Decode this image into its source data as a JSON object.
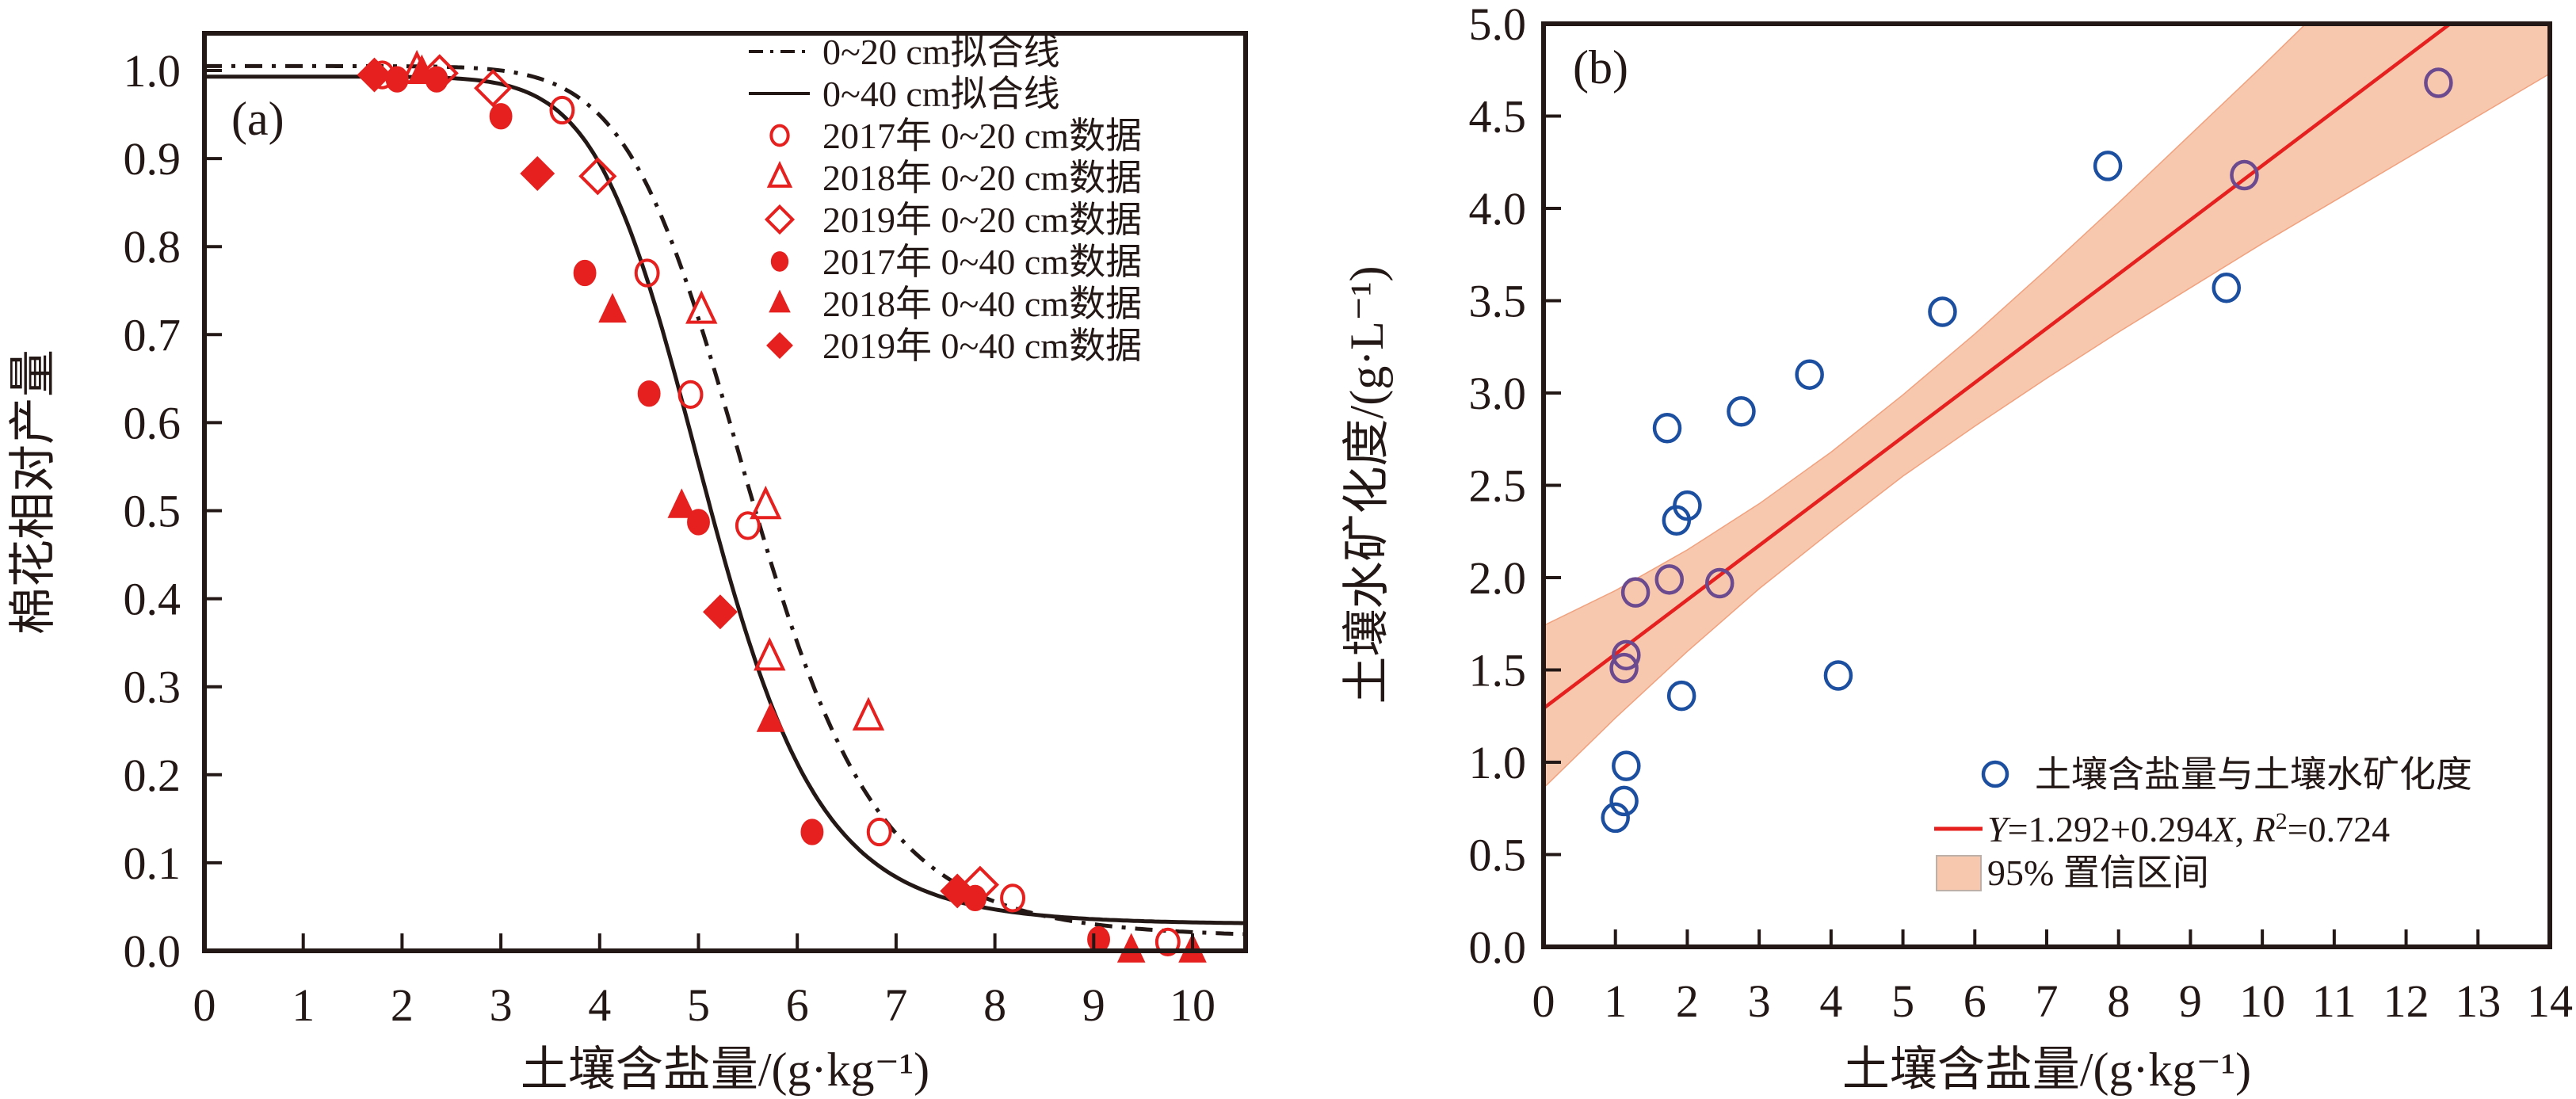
{
  "chart_data": [
    {
      "id": "a",
      "type": "scatter",
      "panel_label": "(a)",
      "title": "",
      "xlabel": "土壤含盐量/(g·kg⁻¹)",
      "ylabel": "棉花相对产量",
      "xlim": [
        0,
        10.5
      ],
      "ylim": [
        0,
        1.04
      ],
      "xticks": [
        "0",
        "1",
        "2",
        "3",
        "4",
        "5",
        "6",
        "7",
        "8",
        "9",
        "10"
      ],
      "yticks": [
        "0.0",
        "0.1",
        "0.2",
        "0.3",
        "0.4",
        "0.5",
        "0.6",
        "0.7",
        "0.8",
        "0.9",
        "1.0"
      ],
      "grid": false,
      "legend_position": "top-right",
      "colors": {
        "marker": "#e5201e",
        "line": "#231815"
      },
      "fit_lines": [
        {
          "name": "0~20 cm拟合线",
          "style": "dash-dot",
          "upper": 1.005,
          "lower": 0.015,
          "x50": 5.55,
          "slope": 1.55
        },
        {
          "name": "0~40 cm拟合线",
          "style": "solid",
          "upper": 0.993,
          "lower": 0.03,
          "x50": 5.1,
          "slope": 1.75
        }
      ],
      "series": [
        {
          "name": "2017年 0~20 cm数据",
          "marker": "circle",
          "filled": false,
          "x": [
            1.8,
            3.62,
            4.48,
            4.92,
            5.5,
            6.83,
            8.18,
            9.75
          ],
          "y": [
            0.995,
            0.955,
            0.77,
            0.632,
            0.483,
            0.135,
            0.06,
            0.01
          ]
        },
        {
          "name": "2018年 0~20 cm数据",
          "marker": "triangle",
          "filled": false,
          "x": [
            2.15,
            5.03,
            5.68,
            5.72,
            6.72
          ],
          "y": [
            1.0,
            0.727,
            0.505,
            0.333,
            0.265
          ]
        },
        {
          "name": "2019年 0~20 cm数据",
          "marker": "diamond",
          "filled": false,
          "x": [
            2.38,
            2.92,
            3.98,
            7.85
          ],
          "y": [
            0.997,
            0.98,
            0.88,
            0.075
          ]
        },
        {
          "name": "2017年 0~40 cm数据",
          "marker": "circle",
          "filled": true,
          "x": [
            1.95,
            2.35,
            3.0,
            3.85,
            4.5,
            5.0,
            6.15,
            7.8,
            9.05
          ],
          "y": [
            0.99,
            0.99,
            0.948,
            0.77,
            0.633,
            0.487,
            0.135,
            0.06,
            0.013
          ]
        },
        {
          "name": "2018年 0~40 cm数据",
          "marker": "triangle",
          "filled": true,
          "x": [
            2.2,
            4.13,
            4.83,
            5.73,
            9.38,
            10.0
          ],
          "y": [
            0.998,
            0.727,
            0.505,
            0.262,
            0.0,
            0.0
          ]
        },
        {
          "name": "2019年 0~40 cm数据",
          "marker": "diamond",
          "filled": true,
          "x": [
            1.72,
            3.37,
            5.22,
            7.62
          ],
          "y": [
            0.995,
            0.883,
            0.385,
            0.068
          ]
        }
      ]
    },
    {
      "id": "b",
      "type": "scatter",
      "panel_label": "(b)",
      "title": "",
      "xlabel": "土壤含盐量/(g·kg⁻¹)",
      "ylabel": "土壤水矿化度/(g·L⁻¹)",
      "xlim": [
        0,
        14
      ],
      "ylim": [
        0,
        5
      ],
      "xticks": [
        "0",
        "1",
        "2",
        "3",
        "4",
        "5",
        "6",
        "7",
        "8",
        "9",
        "10",
        "11",
        "12",
        "13",
        "14"
      ],
      "yticks": [
        "0.0",
        "0.5",
        "1.0",
        "1.5",
        "2.0",
        "2.5",
        "3.0",
        "3.5",
        "4.0",
        "4.5",
        "5.0"
      ],
      "grid": false,
      "legend_position": "bottom-right",
      "colors": {
        "marker": "#1d4fa0",
        "marker_in_band": "#6b4a8f",
        "fit": "#e5201e",
        "band": "#f7c7ae",
        "band_edge": "#f0a27f"
      },
      "series": [
        {
          "name": "土壤含盐量与土壤水矿化度",
          "marker": "circle",
          "filled": false,
          "x": [
            1.0,
            1.12,
            1.15,
            1.12,
            1.15,
            1.28,
            1.72,
            1.75,
            1.85,
            1.92,
            2.0,
            2.45,
            2.75,
            3.7,
            4.1,
            5.55,
            7.85,
            9.5,
            9.75,
            12.45
          ],
          "y": [
            0.7,
            0.79,
            0.98,
            1.51,
            1.58,
            1.92,
            2.81,
            1.99,
            2.31,
            1.36,
            2.39,
            1.97,
            2.9,
            3.1,
            1.47,
            3.44,
            4.23,
            3.57,
            4.18,
            4.68
          ]
        }
      ],
      "regression": {
        "name": "Y=1.292+0.294X, R²=0.724",
        "intercept": 1.292,
        "slope": 0.294,
        "r2": 0.724
      },
      "confidence_band": {
        "name": "95% 置信区间",
        "x": [
          0,
          1,
          2,
          3,
          4,
          5,
          6,
          7,
          8,
          9,
          10,
          11,
          12,
          13,
          14
        ],
        "lower": [
          0.86,
          1.24,
          1.6,
          1.94,
          2.25,
          2.55,
          2.82,
          3.08,
          3.33,
          3.57,
          3.81,
          4.04,
          4.27,
          4.5,
          4.73
        ],
        "upper": [
          1.74,
          1.93,
          2.15,
          2.4,
          2.68,
          2.99,
          3.32,
          3.67,
          4.03,
          4.4,
          4.77,
          5.15,
          5.53,
          5.91,
          6.3
        ]
      },
      "legend": {
        "scatter_label": "土壤含盐量与土壤水矿化度",
        "fit_label_parts": {
          "y": "Y",
          "eq": "=1.292+0.294",
          "x": "X",
          "sep": ", ",
          "r": "R",
          "sup": "2",
          "r2": "=0.724"
        },
        "band_label": "95% 置信区间"
      }
    }
  ]
}
